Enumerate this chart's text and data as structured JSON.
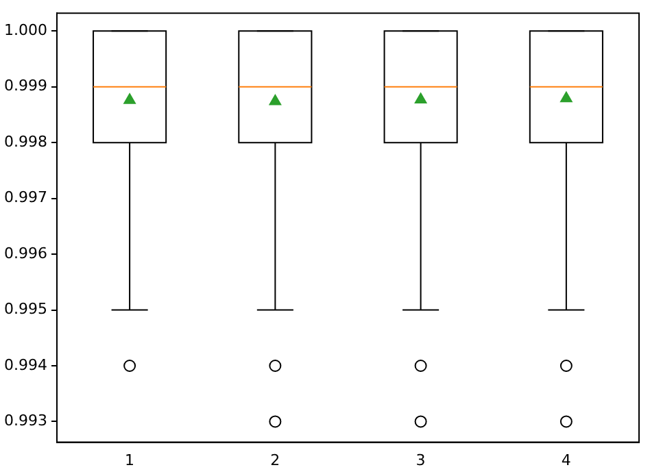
{
  "chart_data": {
    "type": "box",
    "categories": [
      "1",
      "2",
      "3",
      "4"
    ],
    "boxes": [
      {
        "low": 0.995,
        "q1": 0.998,
        "median": 0.999,
        "q3": 1.0,
        "high": 1.0,
        "mean": 0.99876,
        "outliers": [
          0.994
        ]
      },
      {
        "low": 0.995,
        "q1": 0.998,
        "median": 0.999,
        "q3": 1.0,
        "high": 1.0,
        "mean": 0.99874,
        "outliers": [
          0.994,
          0.993
        ]
      },
      {
        "low": 0.995,
        "q1": 0.998,
        "median": 0.999,
        "q3": 1.0,
        "high": 1.0,
        "mean": 0.99877,
        "outliers": [
          0.994,
          0.993
        ]
      },
      {
        "low": 0.995,
        "q1": 0.998,
        "median": 0.999,
        "q3": 1.0,
        "high": 1.0,
        "mean": 0.99879,
        "outliers": [
          0.994,
          0.993
        ]
      }
    ],
    "ylim": [
      0.99263,
      1.00032
    ],
    "yticks": [
      0.993,
      0.994,
      0.995,
      0.996,
      0.997,
      0.998,
      0.999,
      {
        "value": 1.0,
        "label": "1.000"
      }
    ],
    "grid": false,
    "legend": false
  }
}
